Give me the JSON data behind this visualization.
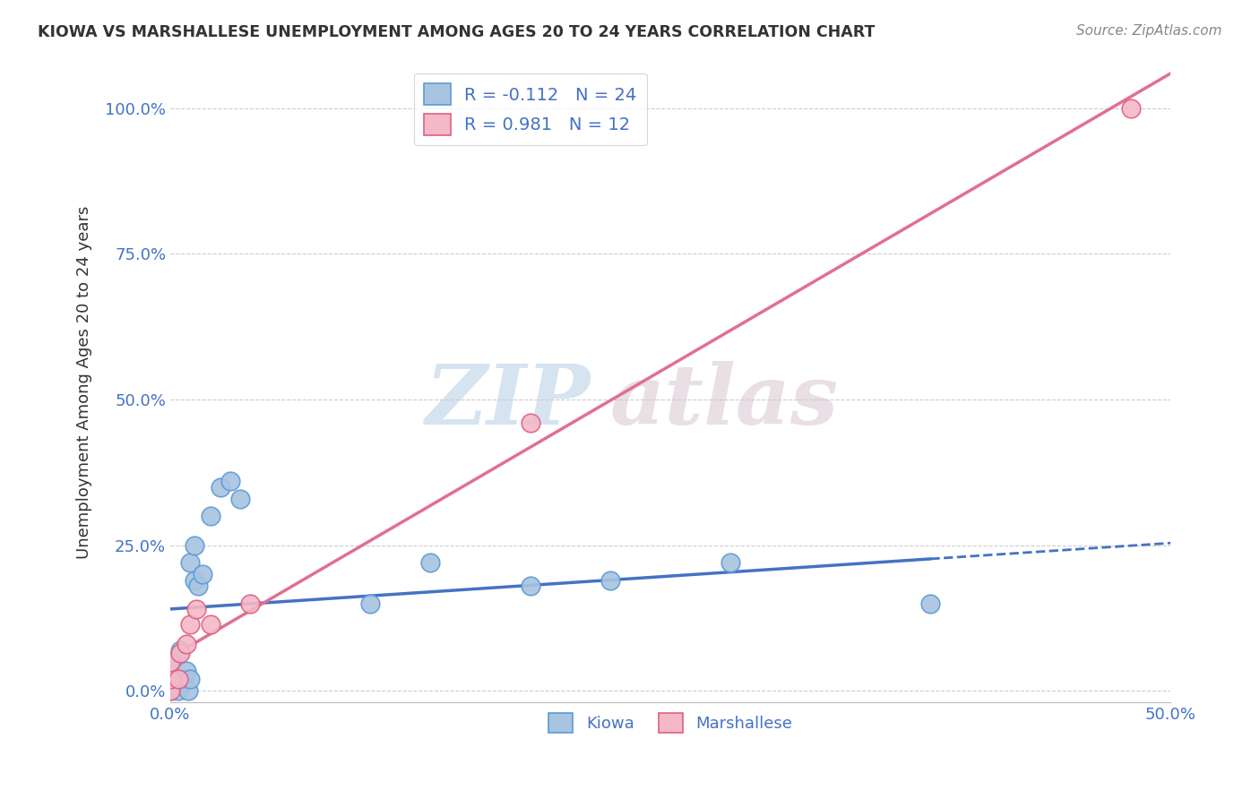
{
  "title": "KIOWA VS MARSHALLESE UNEMPLOYMENT AMONG AGES 20 TO 24 YEARS CORRELATION CHART",
  "source": "Source: ZipAtlas.com",
  "ylabel": "Unemployment Among Ages 20 to 24 years",
  "xlim": [
    0.0,
    0.5
  ],
  "ylim": [
    -0.02,
    1.08
  ],
  "x_ticks": [
    0.0,
    0.5
  ],
  "x_tick_labels": [
    "0.0%",
    "50.0%"
  ],
  "y_ticks": [
    0.0,
    0.25,
    0.5,
    0.75,
    1.0
  ],
  "y_tick_labels": [
    "0.0%",
    "25.0%",
    "50.0%",
    "75.0%",
    "100.0%"
  ],
  "kiowa_color": "#a8c4e0",
  "kiowa_edge_color": "#5b9bd5",
  "marshallese_color": "#f4b8c8",
  "marshallese_edge_color": "#e06080",
  "trend_kiowa_color": "#4472c4",
  "trend_marshallese_color": "#e07090",
  "kiowa_R": -0.112,
  "kiowa_N": 24,
  "marshallese_R": 0.981,
  "marshallese_N": 12,
  "kiowa_x": [
    0.0,
    0.0,
    0.0,
    0.004,
    0.005,
    0.007,
    0.008,
    0.009,
    0.01,
    0.01,
    0.012,
    0.012,
    0.014,
    0.016,
    0.02,
    0.025,
    0.03,
    0.035,
    0.1,
    0.13,
    0.18,
    0.22,
    0.28,
    0.38
  ],
  "kiowa_y": [
    0.0,
    0.03,
    0.05,
    0.0,
    0.07,
    0.02,
    0.035,
    0.0,
    0.02,
    0.22,
    0.25,
    0.19,
    0.18,
    0.2,
    0.3,
    0.35,
    0.36,
    0.33,
    0.15,
    0.22,
    0.18,
    0.19,
    0.22,
    0.15
  ],
  "marshallese_x": [
    0.0,
    0.0,
    0.0,
    0.004,
    0.005,
    0.008,
    0.01,
    0.013,
    0.02,
    0.04,
    0.18,
    0.48
  ],
  "marshallese_y": [
    0.0,
    0.02,
    0.05,
    0.02,
    0.065,
    0.08,
    0.115,
    0.14,
    0.115,
    0.15,
    0.46,
    1.0
  ],
  "watermark_zip": "ZIP",
  "watermark_atlas": "atlas",
  "background_color": "#ffffff",
  "grid_color": "#cccccc",
  "title_color": "#333333",
  "axis_color": "#4472c4",
  "legend_label_color": "#4472c4"
}
